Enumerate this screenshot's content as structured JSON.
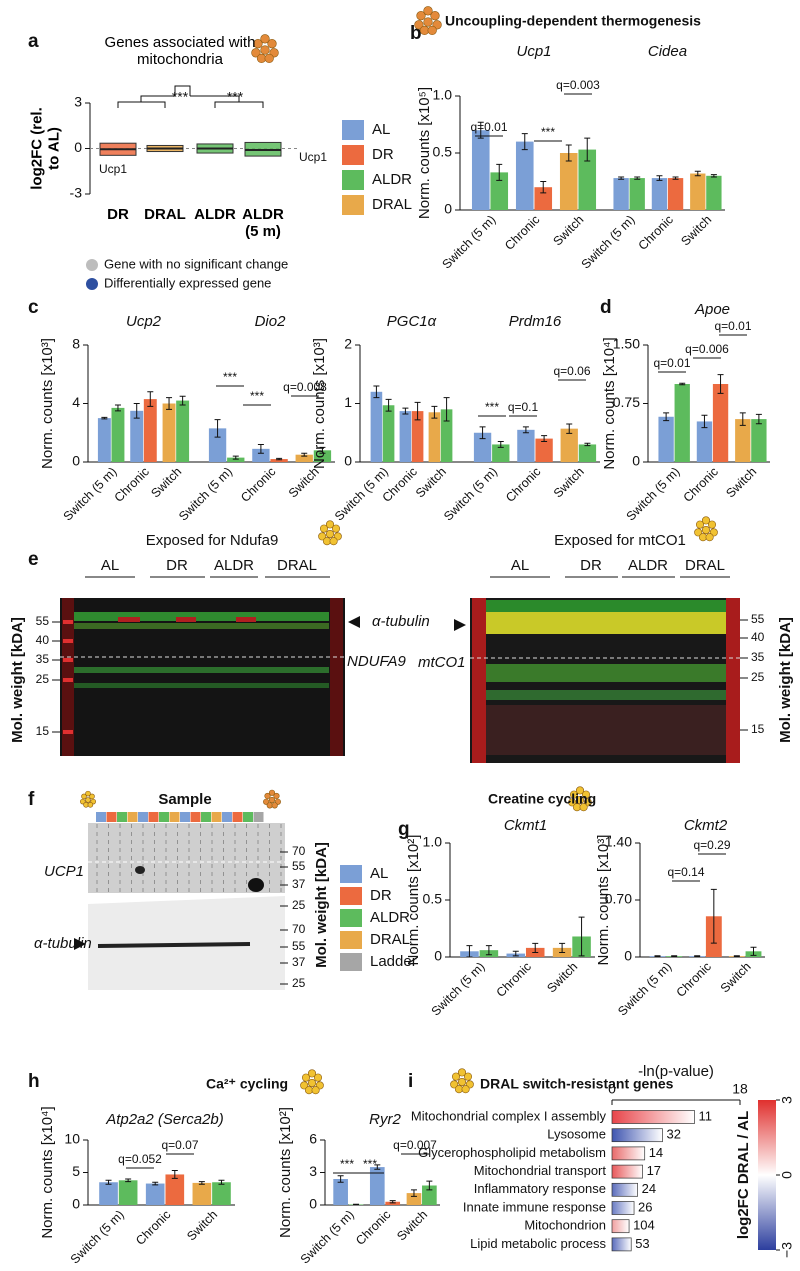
{
  "panel_labels": [
    "a",
    "b",
    "c",
    "d",
    "e",
    "f",
    "g",
    "h",
    "i"
  ],
  "legend": {
    "series": [
      {
        "name": "AL",
        "color": "#7b9fd6"
      },
      {
        "name": "DR",
        "color": "#ec6a3f"
      },
      {
        "name": "ALDR",
        "color": "#5dbb5d"
      },
      {
        "name": "DRAL",
        "color": "#e8a94a"
      }
    ]
  },
  "bar_colors": [
    [
      "#7b9fd6",
      "#5dbb5d"
    ],
    [
      "#7b9fd6",
      "#ec6a3f"
    ],
    [
      "#e8a94a",
      "#5dbb5d"
    ]
  ],
  "chart_data": [
    {
      "type": "box",
      "title": "Genes associated with mitochondria",
      "ylabel": "log2FC (rel. to AL)",
      "ylim": [
        -3,
        3
      ],
      "yticks": [
        3,
        0,
        -3
      ],
      "categories": [
        "DR",
        "DRAL",
        "ALDR",
        "ALDR (5 m)"
      ],
      "medians": [
        -0.05,
        0,
        0,
        -0.1
      ],
      "q1": [
        -0.45,
        -0.2,
        -0.3,
        -0.5
      ],
      "q3": [
        0.35,
        0.2,
        0.3,
        0.4
      ],
      "colors": [
        "#ec6a3f",
        "#e8a94a",
        "#5dbb5d",
        "#5dbb5d"
      ],
      "annotations": [
        "***",
        "***",
        "Ucp1",
        "Ucp1"
      ],
      "point_legend": [
        {
          "label": "Gene with no significant change",
          "color": "#bdbdbd"
        },
        {
          "label": "Differentially expressed  gene",
          "color": "#2e4fa0"
        }
      ]
    },
    {
      "type": "bar",
      "title": "Uncoupling-dependent thermogenesis",
      "ylabel": "Norm. counts [x10⁵]",
      "ylim": [
        0,
        1
      ],
      "yticks": [
        0,
        0.5,
        {
          "value": 1,
          "label": "1.0"
        }
      ],
      "categories": [
        "Switch (5 m)",
        "Chronic",
        "Switch"
      ],
      "subplots": [
        {
          "title": "Ucp1",
          "values": [
            [
              0.7,
              0.33
            ],
            [
              0.6,
              0.2
            ],
            [
              0.5,
              0.53
            ]
          ],
          "errors": [
            [
              0.07,
              0.07
            ],
            [
              0.07,
              0.05
            ],
            [
              0.07,
              0.1
            ]
          ],
          "annotations": [
            "q=0.01",
            "***",
            "q=0.003"
          ]
        },
        {
          "title": "Cidea",
          "values": [
            [
              0.28,
              0.28
            ],
            [
              0.28,
              0.28
            ],
            [
              0.32,
              0.3
            ]
          ],
          "errors": [
            [
              0.01,
              0.01
            ],
            [
              0.02,
              0.01
            ],
            [
              0.02,
              0.01
            ]
          ],
          "annotations": []
        }
      ]
    },
    {
      "type": "bar",
      "ylabel": "Norm. counts [x10³]",
      "ylim": [
        0,
        8
      ],
      "yticks": [
        0,
        4,
        8
      ],
      "categories": [
        "Switch (5 m)",
        "Chronic",
        "Switch"
      ],
      "subplots": [
        {
          "title": "Ucp2",
          "values": [
            [
              3.0,
              3.7
            ],
            [
              3.5,
              4.3
            ],
            [
              4.0,
              4.2
            ]
          ],
          "errors": [
            [
              0.05,
              0.2
            ],
            [
              0.5,
              0.5
            ],
            [
              0.4,
              0.3
            ]
          ],
          "annotations": []
        },
        {
          "title": "Dio2",
          "values": [
            [
              2.3,
              0.3
            ],
            [
              0.9,
              0.2
            ],
            [
              0.5,
              0.8
            ]
          ],
          "errors": [
            [
              0.6,
              0.1
            ],
            [
              0.3,
              0.05
            ],
            [
              0.1,
              0.2
            ]
          ],
          "annotations": [
            "***",
            "***",
            "q=0.008"
          ]
        }
      ]
    },
    {
      "type": "bar",
      "ylabel": "Norm. counts [x10³]",
      "ylim": [
        0,
        2
      ],
      "yticks": [
        0,
        1,
        2
      ],
      "categories": [
        "Switch (5 m)",
        "Chronic",
        "Switch"
      ],
      "subplots": [
        {
          "title": "PGC1α",
          "values": [
            [
              1.2,
              0.97
            ],
            [
              0.87,
              0.87
            ],
            [
              0.85,
              0.9
            ]
          ],
          "errors": [
            [
              0.1,
              0.1
            ],
            [
              0.05,
              0.15
            ],
            [
              0.1,
              0.2
            ]
          ],
          "annotations": []
        },
        {
          "title": "Prdm16",
          "values": [
            [
              0.5,
              0.3
            ],
            [
              0.55,
              0.4
            ],
            [
              0.57,
              0.3
            ]
          ],
          "errors": [
            [
              0.1,
              0.05
            ],
            [
              0.05,
              0.05
            ],
            [
              0.08,
              0.02
            ]
          ],
          "annotations": [
            "***",
            "q=0.1",
            "q=0.06"
          ]
        }
      ]
    },
    {
      "type": "bar",
      "ylabel": "Norm. counts [x10⁴]",
      "ylim": [
        0,
        1.5
      ],
      "yticks": [
        0,
        0.75,
        {
          "value": 1.5,
          "label": "1.50"
        }
      ],
      "categories": [
        "Switch (5 m)",
        "Chronic",
        "Switch"
      ],
      "subplots": [
        {
          "title": "Apoe",
          "values": [
            [
              0.58,
              1.0
            ],
            [
              0.52,
              1.0
            ],
            [
              0.55,
              0.55
            ]
          ],
          "errors": [
            [
              0.05,
              0.01
            ],
            [
              0.08,
              0.12
            ],
            [
              0.08,
              0.06
            ]
          ],
          "annotations": [
            "q=0.01",
            "q=0.006",
            "q=0.01"
          ]
        }
      ]
    },
    {
      "type": "bar",
      "title": "Creatine cycling",
      "ylabel": "Norm. counts [x10²]",
      "ylim": [
        0,
        1
      ],
      "yticks": [
        0,
        0.5,
        {
          "value": 1,
          "label": "1.0"
        }
      ],
      "categories": [
        "Switch (5 m)",
        "Chronic",
        "Switch"
      ],
      "subplots": [
        {
          "title": "Ckmt1",
          "values": [
            [
              0.05,
              0.06
            ],
            [
              0.03,
              0.08
            ],
            [
              0.08,
              0.18
            ]
          ],
          "errors": [
            [
              0.05,
              0.04
            ],
            [
              0.02,
              0.04
            ],
            [
              0.04,
              0.17
            ]
          ],
          "annotations": []
        }
      ]
    },
    {
      "type": "bar",
      "ylabel": "Norm. counts [x10³]",
      "ylim": [
        0,
        1.4
      ],
      "yticks": [
        0,
        {
          "value": 0.7,
          "label": "0.70"
        },
        {
          "value": 1.4,
          "label": "1.40"
        }
      ],
      "categories": [
        "Switch (5 m)",
        "Chronic",
        "Switch"
      ],
      "subplots": [
        {
          "title": "Ckmt2",
          "values": [
            [
              0.01,
              0.01
            ],
            [
              0.01,
              0.5
            ],
            [
              0.01,
              0.07
            ]
          ],
          "errors": [
            [
              0.005,
              0.005
            ],
            [
              0.005,
              0.33
            ],
            [
              0.005,
              0.05
            ]
          ],
          "annotations": [
            "q=0.14",
            "q=0.29"
          ]
        }
      ]
    },
    {
      "type": "bar",
      "title": "Ca²⁺ cycling",
      "ylabel": "Norm. counts [x10⁴]",
      "ylim": [
        0,
        10
      ],
      "yticks": [
        0,
        5,
        10
      ],
      "categories": [
        "Switch (5 m)",
        "Chronic",
        "Switch"
      ],
      "subplots": [
        {
          "title": "Atp2a2 (Serca2b)",
          "values": [
            [
              3.5,
              3.8
            ],
            [
              3.3,
              4.7
            ],
            [
              3.4,
              3.5
            ]
          ],
          "errors": [
            [
              0.3,
              0.2
            ],
            [
              0.2,
              0.6
            ],
            [
              0.2,
              0.3
            ]
          ],
          "annotations": [
            "q=0.052",
            "q=0.07"
          ]
        }
      ]
    },
    {
      "type": "bar",
      "ylabel": "Norm. counts [x10²]",
      "ylim": [
        0,
        6
      ],
      "yticks": [
        0,
        3,
        6
      ],
      "categories": [
        "Switch (5 m)",
        "Chronic",
        "Switch"
      ],
      "subplots": [
        {
          "title": "Ryr2",
          "values": [
            [
              2.4,
              0.05
            ],
            [
              3.5,
              0.3
            ],
            [
              1.1,
              1.8
            ]
          ],
          "errors": [
            [
              0.3,
              0.02
            ],
            [
              0.2,
              0.1
            ],
            [
              0.3,
              0.4
            ]
          ],
          "annotations": [
            "***",
            "***",
            "q=0.007"
          ]
        }
      ]
    },
    {
      "type": "hbar",
      "title": "DRAL switch-resistant genes",
      "xlabel": "-ln(p-value)",
      "xlim": [
        0,
        18
      ],
      "xticks": [
        0,
        18
      ],
      "categories": [
        "Mitochondrial complex I assembly",
        "Lysosome",
        "Glycerophospholipid metabolism",
        "Mitochondrial transport",
        "Inflammatory response",
        "Innate immune response",
        "Mitochondrion",
        "Lipid metabolic process"
      ],
      "values": [
        11.6,
        7.1,
        4.6,
        4.3,
        3.6,
        3.1,
        2.4,
        2.7
      ],
      "gene_counts": [
        11,
        32,
        14,
        17,
        24,
        26,
        104,
        53
      ],
      "colors": [
        "#e8454a",
        "#3f55b0",
        "#e86a6a",
        "#e8585a",
        "#5a6cbc",
        "#6a7cc4",
        "#f0a0a0",
        "#5a6cbc"
      ],
      "colorbar": {
        "label": "log2FC DRAL / AL",
        "lim": [
          -3,
          3
        ],
        "ticks": [
          3,
          0,
          {
            "value": -3,
            "label": "−3"
          }
        ],
        "colors": [
          "#2c3e9e",
          "#ffffff",
          "#e0302e"
        ]
      }
    }
  ],
  "western_blots": {
    "e": {
      "ylabel": "Mol. weight [kDA]",
      "left": {
        "title": "Exposed for Ndufa9",
        "lanes": [
          "AL",
          "DR",
          "ALDR",
          "DRAL"
        ],
        "markers": [
          55,
          40,
          35,
          25,
          15
        ],
        "labels": [
          "α-tubulin",
          "NDUFA9"
        ]
      },
      "right": {
        "title": "Exposed for mtCO1",
        "lanes": [
          "AL",
          "DR",
          "ALDR",
          "DRAL"
        ],
        "markers": [
          55,
          40,
          35,
          25,
          15
        ],
        "labels": [
          "mtCO1"
        ]
      }
    },
    "f": {
      "title": "Sample",
      "labels": [
        "UCP1",
        "α-tubulin"
      ],
      "markers_top": [
        70,
        55,
        37,
        25
      ],
      "markers_bottom": [
        70,
        55,
        37,
        25
      ],
      "ylabel": "Mol. weight [kDA]",
      "legend": [
        {
          "name": "AL",
          "color": "#7b9fd6"
        },
        {
          "name": "DR",
          "color": "#ec6a3f"
        },
        {
          "name": "ALDR",
          "color": "#5dbb5d"
        },
        {
          "name": "DRAL",
          "color": "#e8a94a"
        },
        {
          "name": "Ladder",
          "color": "#a6a6a6"
        }
      ]
    }
  }
}
